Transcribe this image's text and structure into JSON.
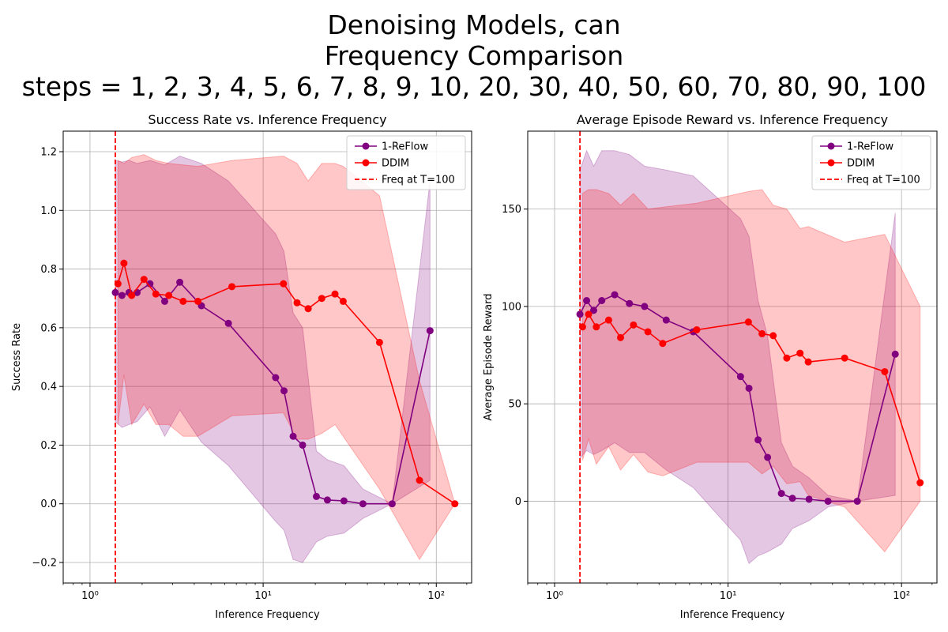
{
  "figure": {
    "suptitle_lines": [
      "Denoising Models, can",
      "Frequency Comparison",
      "steps = 1, 2, 3, 4, 5, 6, 7, 8, 9, 10, 20, 30, 40, 50, 60, 70, 80, 90, 100"
    ]
  },
  "colors": {
    "reflow": "#800080",
    "ddim": "#ff0000",
    "band_reflow": "#800080",
    "band_ddim": "#ff0000"
  },
  "chart_data": [
    {
      "type": "line",
      "title": "Success Rate vs. Inference Frequency",
      "xlabel": "Inference Frequency",
      "ylabel": "Success Rate",
      "xscale": "log",
      "xlim": [
        0.7,
        160
      ],
      "ylim": [
        -0.27,
        1.27
      ],
      "xticks": [
        1,
        10,
        100
      ],
      "xtick_labels": [
        "10⁰",
        "10¹",
        "10²"
      ],
      "yticks": [
        -0.2,
        0.0,
        0.2,
        0.4,
        0.6,
        0.8,
        1.0,
        1.2
      ],
      "ytick_labels": [
        "−0.2",
        "0.0",
        "0.2",
        "0.4",
        "0.6",
        "0.8",
        "1.0",
        "1.2"
      ],
      "grid": true,
      "legend_position": "top-right",
      "vline": {
        "x": 1.4,
        "label": "Freq at T=100"
      },
      "series": [
        {
          "name": "1-ReFlow",
          "x": [
            1.4,
            1.53,
            1.68,
            1.87,
            2.22,
            2.7,
            3.3,
            4.4,
            6.3,
            11.8,
            13.2,
            14.9,
            16.9,
            20.3,
            23.5,
            29.3,
            37.7,
            55.6,
            92.0
          ],
          "y": [
            0.72,
            0.71,
            0.72,
            0.72,
            0.75,
            0.69,
            0.755,
            0.675,
            0.615,
            0.43,
            0.385,
            0.23,
            0.2,
            0.025,
            0.013,
            0.01,
            0.0,
            0.0,
            0.59
          ],
          "upper": [
            1.17,
            1.165,
            1.17,
            1.16,
            1.17,
            1.155,
            1.185,
            1.16,
            1.1,
            0.92,
            0.86,
            0.65,
            0.6,
            0.18,
            0.15,
            0.13,
            0.05,
            0.0,
            1.1
          ],
          "lower": [
            0.28,
            0.26,
            0.27,
            0.28,
            0.33,
            0.23,
            0.32,
            0.21,
            0.13,
            -0.06,
            -0.09,
            -0.19,
            -0.2,
            -0.13,
            -0.11,
            -0.1,
            -0.05,
            0.0,
            0.08
          ]
        },
        {
          "name": "DDIM",
          "x": [
            1.45,
            1.57,
            1.74,
            2.05,
            2.4,
            2.85,
            3.45,
            4.2,
            6.6,
            13.1,
            15.7,
            18.2,
            21.8,
            26.0,
            29.0,
            47.0,
            80.0,
            128.0
          ],
          "y": [
            0.75,
            0.82,
            0.71,
            0.765,
            0.715,
            0.71,
            0.69,
            0.69,
            0.74,
            0.75,
            0.685,
            0.665,
            0.7,
            0.715,
            0.69,
            0.55,
            0.08,
            0.0
          ],
          "upper": [
            1.17,
            1.16,
            1.18,
            1.19,
            1.17,
            1.16,
            1.155,
            1.15,
            1.17,
            1.185,
            1.16,
            1.1,
            1.16,
            1.16,
            1.15,
            1.05,
            0.42,
            0.0
          ],
          "lower": [
            0.27,
            0.44,
            0.27,
            0.34,
            0.27,
            0.27,
            0.23,
            0.23,
            0.3,
            0.31,
            0.22,
            0.22,
            0.24,
            0.27,
            0.23,
            0.05,
            -0.19,
            0.0
          ]
        }
      ]
    },
    {
      "type": "line",
      "title": "Average Episode Reward vs. Inference Frequency",
      "xlabel": "Inference Frequency",
      "ylabel": "Average Episode Reward",
      "xscale": "log",
      "xlim": [
        0.7,
        160
      ],
      "ylim": [
        -42,
        190
      ],
      "xticks": [
        1,
        10,
        100
      ],
      "xtick_labels": [
        "10⁰",
        "10¹",
        "10²"
      ],
      "yticks": [
        0,
        50,
        100,
        150
      ],
      "ytick_labels": [
        "0",
        "50",
        "100",
        "150"
      ],
      "grid": true,
      "legend_position": "top-right",
      "vline": {
        "x": 1.4,
        "label": "Freq at T=100"
      },
      "series": [
        {
          "name": "1-ReFlow",
          "x": [
            1.4,
            1.53,
            1.68,
            1.87,
            2.22,
            2.7,
            3.3,
            4.4,
            6.3,
            11.8,
            13.2,
            14.9,
            16.9,
            20.3,
            23.5,
            29.3,
            37.7,
            55.6,
            92.0
          ],
          "y": [
            96,
            103,
            98,
            103,
            106,
            101.5,
            100,
            93,
            87,
            64,
            58,
            31.5,
            22.5,
            4,
            1.5,
            1,
            0,
            0,
            75.5
          ],
          "upper": [
            170,
            180,
            172,
            180,
            180,
            178,
            172,
            170,
            167,
            145,
            136,
            103,
            85,
            30,
            18,
            12,
            3,
            0,
            148
          ],
          "lower": [
            22,
            26,
            24,
            26,
            30,
            25,
            25,
            16,
            7,
            -20,
            -32,
            -28,
            -26,
            -22,
            -14,
            -10,
            -3,
            0,
            3
          ]
        },
        {
          "name": "DDIM",
          "x": [
            1.45,
            1.57,
            1.74,
            2.05,
            2.4,
            2.85,
            3.45,
            4.2,
            6.6,
            13.1,
            15.7,
            18.2,
            21.8,
            26.0,
            29.0,
            47.0,
            80.0,
            128.0
          ],
          "y": [
            89.5,
            96,
            89.5,
            93,
            84,
            90.5,
            87,
            81,
            88,
            92,
            86,
            85,
            73.5,
            76,
            71.5,
            73.5,
            66.5,
            9.5
          ],
          "upper": [
            158,
            160,
            160,
            158,
            152,
            158,
            150,
            151,
            153,
            159,
            160,
            152,
            150,
            140,
            141,
            133,
            137,
            100
          ],
          "lower": [
            21,
            32,
            19,
            28,
            16,
            24,
            15,
            13,
            20,
            20,
            14,
            18,
            9,
            10,
            3,
            -3,
            -26,
            0
          ]
        }
      ]
    }
  ]
}
